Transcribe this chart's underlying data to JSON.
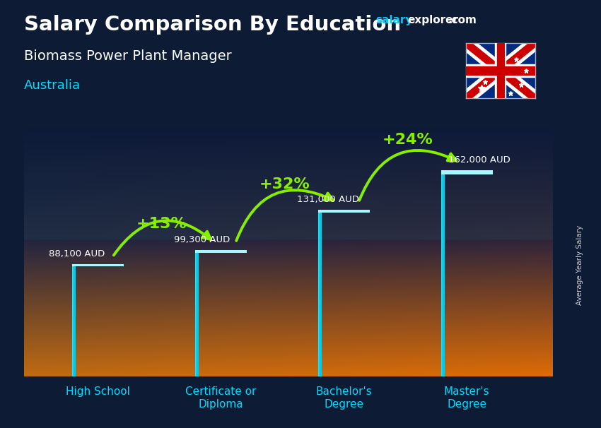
{
  "title_main": "Salary Comparison By Education",
  "subtitle": "Biomass Power Plant Manager",
  "country": "Australia",
  "ylabel": "Average Yearly Salary",
  "categories": [
    "High School",
    "Certificate or\nDiploma",
    "Bachelor's\nDegree",
    "Master's\nDegree"
  ],
  "values": [
    88100,
    99300,
    131000,
    162000
  ],
  "value_labels": [
    "88,100 AUD",
    "99,300 AUD",
    "131,000 AUD",
    "162,000 AUD"
  ],
  "pct_labels": [
    "+13%",
    "+32%",
    "+24%"
  ],
  "bar_color_left": "#55ddee",
  "bar_color_right": "#009dbb",
  "bar_color_center": "#00ccdd",
  "bg_color": "#0d1b35",
  "arrow_color": "#88ee00",
  "pct_color": "#88ee00",
  "title_color": "#ffffff",
  "subtitle_color": "#ffffff",
  "country_color": "#00ddff",
  "value_label_color": "#ffffff",
  "xlabel_color": "#00ddff",
  "website_color_salary": "#00ccff",
  "website_color_explorer": "#ffffff",
  "ylabel_color": "#cccccc"
}
